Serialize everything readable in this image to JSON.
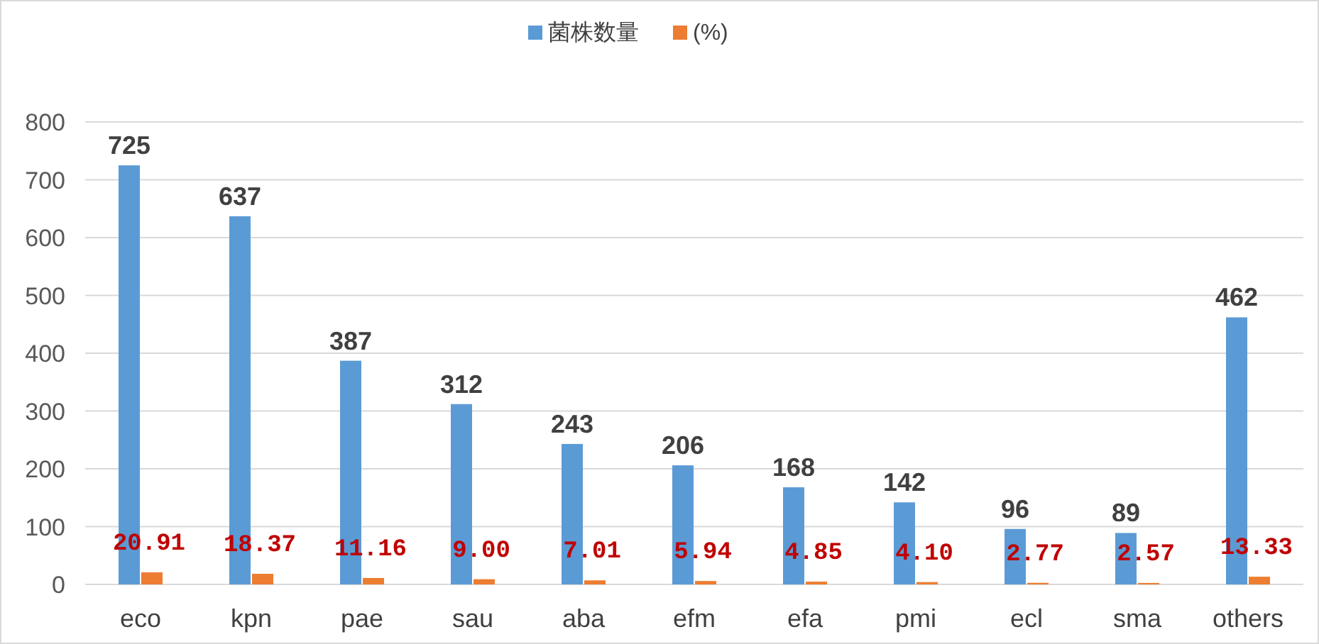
{
  "chart_data": {
    "type": "bar",
    "categories": [
      "eco",
      "kpn",
      "pae",
      "sau",
      "aba",
      "efm",
      "efa",
      "pmi",
      "ecl",
      "sma",
      "others"
    ],
    "series": [
      {
        "name": "菌株数量",
        "color": "#5b9bd5",
        "values": [
          725,
          637,
          387,
          312,
          243,
          206,
          168,
          142,
          96,
          89,
          462
        ]
      },
      {
        "name": "(%)",
        "color": "#ed7d31",
        "values": [
          20.91,
          18.37,
          11.16,
          9.0,
          7.01,
          5.94,
          4.85,
          4.1,
          2.77,
          2.57,
          13.33
        ],
        "value_labels": [
          "20.91",
          "18.37",
          "11.16",
          "9.00",
          "7.01",
          "5.94",
          "4.85",
          "4.10",
          "2.77",
          "2.57",
          "13.33"
        ]
      }
    ],
    "ylim": [
      0,
      800
    ],
    "yticks": [
      0,
      100,
      200,
      300,
      400,
      500,
      600,
      700,
      800
    ],
    "grid": "y",
    "legend": "top",
    "data_labels": true
  }
}
